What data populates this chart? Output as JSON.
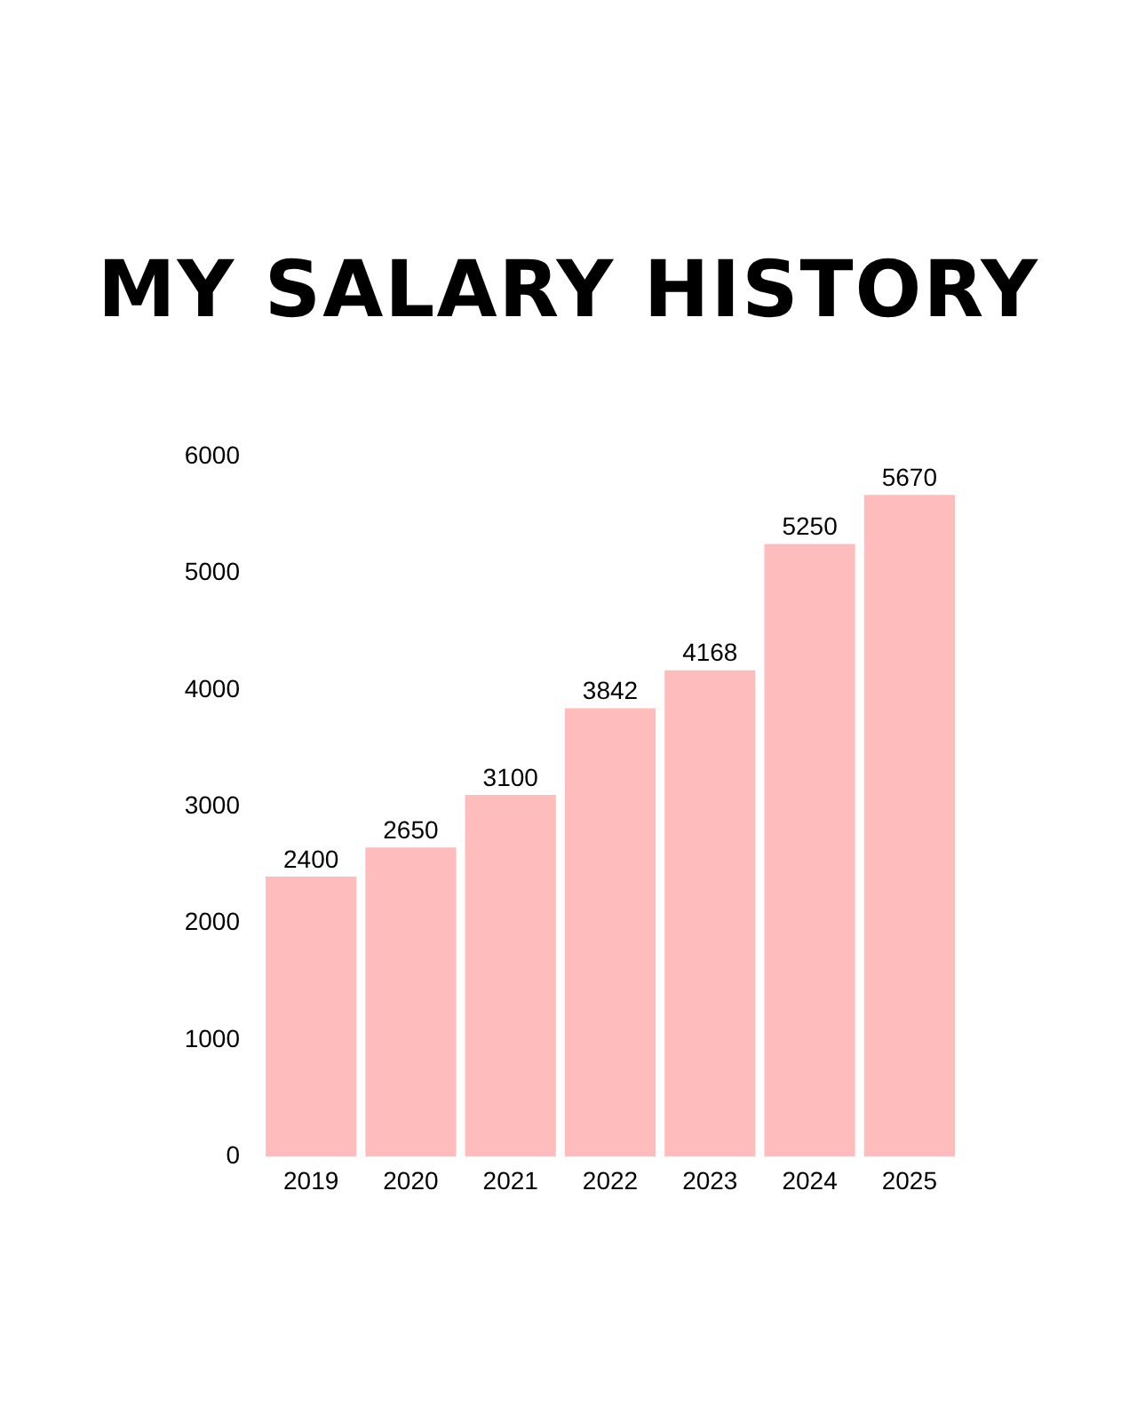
{
  "chart_data": {
    "type": "bar",
    "title": "MY SALARY HISTORY",
    "categories": [
      "2019",
      "2020",
      "2021",
      "2022",
      "2023",
      "2024",
      "2025"
    ],
    "values": [
      2400,
      2650,
      3100,
      3842,
      4168,
      5250,
      5670
    ],
    "color": "#ffbcbc",
    "ylim": [
      0,
      6000
    ],
    "yticks": [
      0,
      1000,
      2000,
      3000,
      4000,
      5000,
      6000
    ],
    "data_labels": true,
    "grid": false
  }
}
